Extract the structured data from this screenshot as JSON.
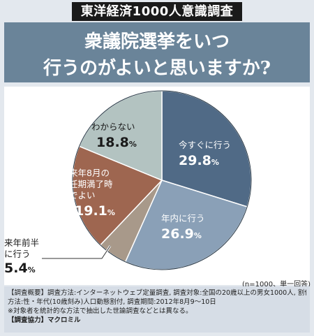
{
  "banner": "東洋経済1000人意識調査",
  "title": {
    "line1": "衆議院選挙をいつ",
    "line2": "行うのがよいと思いますか?"
  },
  "chart_data": {
    "type": "pie",
    "title": "衆議院選挙をいつ行うのがよいと思いますか?",
    "start_angle_deg": 0,
    "direction": "clockwise",
    "slices": [
      {
        "label": "今すぐに行う",
        "value": 29.8,
        "unit": "%",
        "color": "#506a86"
      },
      {
        "label": "年内に行う",
        "value": 26.9,
        "unit": "%",
        "color": "#8aa0b7"
      },
      {
        "label": "来年前半に行う",
        "value": 5.4,
        "unit": "%",
        "color": "#a8998a"
      },
      {
        "label": "来年8月の任期満了時でよい",
        "value": 19.1,
        "unit": "%",
        "color": "#9e6650"
      },
      {
        "label": "わからない",
        "value": 18.8,
        "unit": "%",
        "color": "#b3c3c1"
      }
    ],
    "note": "(n=1000、単一回答)"
  },
  "labels": {
    "s0": {
      "line1": "今すぐに行う",
      "value": "29.8",
      "unit": "%"
    },
    "s1": {
      "line1": "年内に行う",
      "value": "26.9",
      "unit": "%"
    },
    "s2": {
      "line1": "来年前半",
      "line2": "に行う",
      "value": "5.4",
      "unit": "%"
    },
    "s3": {
      "line1": "来年8月の",
      "line2": "任期満了時",
      "line3": "でよい",
      "value": "19.1",
      "unit": "%"
    },
    "s4": {
      "line1": "わからない",
      "value": "18.8",
      "unit": "%"
    }
  },
  "footer": {
    "line1": "【調査概要】調査方法:インターネットウェブ定量調査, 調査対象:全国の20歳以上の男女1000人, 割付",
    "line2": "方法:性・年代(10歳刻み)人口動態割付, 調査期間:2012年8月9〜10日",
    "line3": "※対象者を統計的な方法で抽出した世論調査などとは異なる。",
    "line4": "【調査協力】マクロミル"
  }
}
